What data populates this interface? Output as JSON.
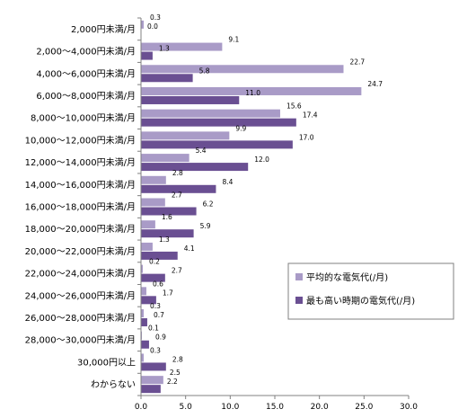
{
  "chart_data": {
    "type": "bar",
    "orientation": "horizontal",
    "categories": [
      "2,000円未満/月",
      "2,000～4,000円未満/月",
      "4,000～6,000円未満/月",
      "6,000～8,000円未満/月",
      "8,000～10,000円未満/月",
      "10,000～12,000円未満/月",
      "12,000～14,000円未満/月",
      "14,000～16,000円未満/月",
      "16,000～18,000円未満/月",
      "18,000～20,000円未満/月",
      "20,000～22,000円未満/月",
      "22,000～24,000円未満/月",
      "24,000～26,000円未満/月",
      "26,000～28,000円未満/月",
      "28,000～30,000円未満/月",
      "30,000円以上",
      "わからない"
    ],
    "series": [
      {
        "name": "平均的な電気代(/月)",
        "color": "#a99bc7",
        "values": [
          0.3,
          9.1,
          22.7,
          24.7,
          15.6,
          9.9,
          5.4,
          2.8,
          2.7,
          1.6,
          1.3,
          0.2,
          0.6,
          0.3,
          0.1,
          0.3,
          2.5
        ]
      },
      {
        "name": "最も高い時期の電気代(/月)",
        "color": "#6a4f92",
        "values": [
          0.0,
          1.3,
          5.8,
          11.0,
          17.4,
          17.0,
          12.0,
          8.4,
          6.2,
          5.9,
          4.1,
          2.7,
          1.7,
          0.7,
          0.9,
          2.8,
          2.2
        ]
      }
    ],
    "xlim": [
      0,
      30
    ],
    "xticks": [
      "0.0",
      "5.0",
      "10.0",
      "15.0",
      "20.0",
      "25.0",
      "30.0"
    ],
    "grid": false,
    "legend_position": "right-middle"
  }
}
